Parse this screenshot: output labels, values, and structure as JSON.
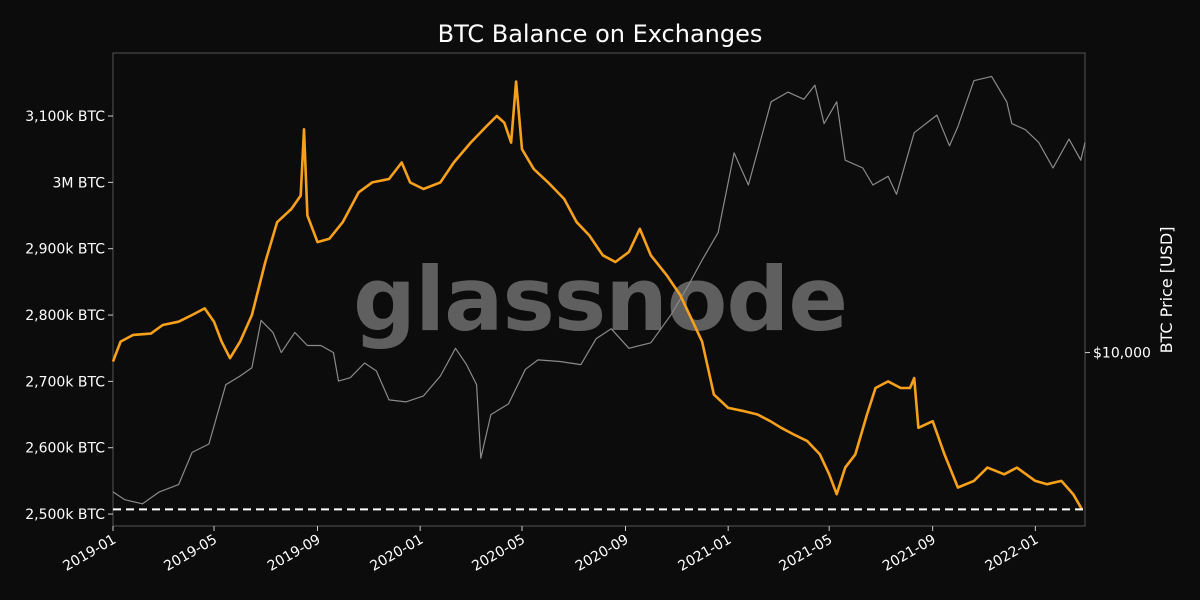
{
  "chart_data": {
    "type": "line",
    "title": "BTC Balance on Exchanges",
    "watermark": "glassnode",
    "ylabel_right": "BTC Price [USD]",
    "x_ticks": [
      "2019-01",
      "2019-05",
      "2019-09",
      "2020-01",
      "2020-05",
      "2020-09",
      "2021-01",
      "2021-05",
      "2021-09",
      "2022-01"
    ],
    "x_range": [
      "2019-01-01",
      "2022-03-01"
    ],
    "y_left_ticks": [
      {
        "value": 2500000,
        "label": "2,500k BTC"
      },
      {
        "value": 2600000,
        "label": "2,600k BTC"
      },
      {
        "value": 2700000,
        "label": "2,700k BTC"
      },
      {
        "value": 2800000,
        "label": "2,800k BTC"
      },
      {
        "value": 2900000,
        "label": "2,900k BTC"
      },
      {
        "value": 3000000,
        "label": "3M BTC"
      },
      {
        "value": 3100000,
        "label": "3,100k BTC"
      }
    ],
    "y_left_range": [
      2482000,
      3195000
    ],
    "y_right_ticks": [
      {
        "value": 10000,
        "label": "$10,000"
      }
    ],
    "y_right_scale": "log",
    "y_right_range": [
      3000,
      80000
    ],
    "reference_line": {
      "value": 2507000,
      "style": "dashed",
      "color": "#ffffff"
    },
    "grid": false,
    "series": [
      {
        "axis": "left",
        "color": "#f7a11a",
        "points": [
          [
            "2019-01-01",
            2730000
          ],
          [
            "2019-01-10",
            2760000
          ],
          [
            "2019-01-25",
            2770000
          ],
          [
            "2019-02-15",
            2772000
          ],
          [
            "2019-03-01",
            2785000
          ],
          [
            "2019-03-20",
            2790000
          ],
          [
            "2019-04-05",
            2800000
          ],
          [
            "2019-04-20",
            2810000
          ],
          [
            "2019-05-01",
            2790000
          ],
          [
            "2019-05-10",
            2760000
          ],
          [
            "2019-05-20",
            2735000
          ],
          [
            "2019-06-01",
            2760000
          ],
          [
            "2019-06-15",
            2800000
          ],
          [
            "2019-07-01",
            2880000
          ],
          [
            "2019-07-15",
            2940000
          ],
          [
            "2019-08-01",
            2960000
          ],
          [
            "2019-08-12",
            2980000
          ],
          [
            "2019-08-16",
            3080000
          ],
          [
            "2019-08-20",
            2950000
          ],
          [
            "2019-09-01",
            2910000
          ],
          [
            "2019-09-15",
            2915000
          ],
          [
            "2019-10-01",
            2940000
          ],
          [
            "2019-10-20",
            2985000
          ],
          [
            "2019-11-05",
            3000000
          ],
          [
            "2019-11-25",
            3005000
          ],
          [
            "2019-12-10",
            3030000
          ],
          [
            "2019-12-20",
            3000000
          ],
          [
            "2020-01-05",
            2990000
          ],
          [
            "2020-01-25",
            3000000
          ],
          [
            "2020-02-10",
            3030000
          ],
          [
            "2020-03-01",
            3060000
          ],
          [
            "2020-03-20",
            3085000
          ],
          [
            "2020-04-01",
            3100000
          ],
          [
            "2020-04-10",
            3090000
          ],
          [
            "2020-04-18",
            3060000
          ],
          [
            "2020-04-24",
            3152000
          ],
          [
            "2020-05-01",
            3050000
          ],
          [
            "2020-05-15",
            3020000
          ],
          [
            "2020-06-01",
            3000000
          ],
          [
            "2020-06-20",
            2975000
          ],
          [
            "2020-07-05",
            2940000
          ],
          [
            "2020-07-20",
            2920000
          ],
          [
            "2020-08-05",
            2890000
          ],
          [
            "2020-08-20",
            2880000
          ],
          [
            "2020-09-05",
            2895000
          ],
          [
            "2020-09-18",
            2930000
          ],
          [
            "2020-10-01",
            2890000
          ],
          [
            "2020-10-20",
            2860000
          ],
          [
            "2020-11-05",
            2830000
          ],
          [
            "2020-11-20",
            2790000
          ],
          [
            "2020-12-01",
            2760000
          ],
          [
            "2020-12-15",
            2680000
          ],
          [
            "2021-01-01",
            2660000
          ],
          [
            "2021-01-20",
            2655000
          ],
          [
            "2021-02-05",
            2650000
          ],
          [
            "2021-02-20",
            2640000
          ],
          [
            "2021-03-05",
            2630000
          ],
          [
            "2021-03-20",
            2620000
          ],
          [
            "2021-04-05",
            2610000
          ],
          [
            "2021-04-20",
            2590000
          ],
          [
            "2021-05-01",
            2560000
          ],
          [
            "2021-05-10",
            2530000
          ],
          [
            "2021-05-20",
            2570000
          ],
          [
            "2021-06-01",
            2590000
          ],
          [
            "2021-06-15",
            2650000
          ],
          [
            "2021-06-25",
            2690000
          ],
          [
            "2021-07-10",
            2700000
          ],
          [
            "2021-07-25",
            2690000
          ],
          [
            "2021-08-05",
            2690000
          ],
          [
            "2021-08-10",
            2705000
          ],
          [
            "2021-08-15",
            2630000
          ],
          [
            "2021-09-01",
            2640000
          ],
          [
            "2021-09-15",
            2590000
          ],
          [
            "2021-10-01",
            2540000
          ],
          [
            "2021-10-20",
            2550000
          ],
          [
            "2021-11-05",
            2570000
          ],
          [
            "2021-11-25",
            2560000
          ],
          [
            "2021-12-10",
            2570000
          ],
          [
            "2022-01-01",
            2550000
          ],
          [
            "2022-01-15",
            2545000
          ],
          [
            "2022-02-01",
            2550000
          ],
          [
            "2022-02-15",
            2530000
          ],
          [
            "2022-02-25",
            2508000
          ]
        ]
      },
      {
        "axis": "right",
        "color": "#8a8a8a",
        "points": [
          [
            "2019-01-01",
            3800
          ],
          [
            "2019-01-15",
            3600
          ],
          [
            "2019-02-05",
            3500
          ],
          [
            "2019-02-25",
            3800
          ],
          [
            "2019-03-20",
            4000
          ],
          [
            "2019-04-05",
            5000
          ],
          [
            "2019-04-25",
            5300
          ],
          [
            "2019-05-15",
            8000
          ],
          [
            "2019-06-01",
            8500
          ],
          [
            "2019-06-15",
            9000
          ],
          [
            "2019-06-26",
            12500
          ],
          [
            "2019-07-10",
            11500
          ],
          [
            "2019-07-20",
            10000
          ],
          [
            "2019-08-05",
            11500
          ],
          [
            "2019-08-20",
            10500
          ],
          [
            "2019-09-05",
            10500
          ],
          [
            "2019-09-20",
            10000
          ],
          [
            "2019-09-26",
            8200
          ],
          [
            "2019-10-10",
            8400
          ],
          [
            "2019-10-27",
            9300
          ],
          [
            "2019-11-10",
            8800
          ],
          [
            "2019-11-25",
            7200
          ],
          [
            "2019-12-15",
            7100
          ],
          [
            "2020-01-05",
            7400
          ],
          [
            "2020-01-25",
            8500
          ],
          [
            "2020-02-12",
            10300
          ],
          [
            "2020-02-25",
            9200
          ],
          [
            "2020-03-08",
            8000
          ],
          [
            "2020-03-13",
            4800
          ],
          [
            "2020-03-25",
            6500
          ],
          [
            "2020-04-15",
            7000
          ],
          [
            "2020-05-05",
            8900
          ],
          [
            "2020-05-20",
            9500
          ],
          [
            "2020-06-15",
            9400
          ],
          [
            "2020-07-10",
            9200
          ],
          [
            "2020-07-28",
            11000
          ],
          [
            "2020-08-15",
            11800
          ],
          [
            "2020-09-05",
            10300
          ],
          [
            "2020-10-01",
            10700
          ],
          [
            "2020-10-25",
            13000
          ],
          [
            "2020-11-15",
            16000
          ],
          [
            "2020-12-01",
            19000
          ],
          [
            "2020-12-20",
            23000
          ],
          [
            "2021-01-08",
            40000
          ],
          [
            "2021-01-25",
            32000
          ],
          [
            "2021-02-10",
            45000
          ],
          [
            "2021-02-21",
            57000
          ],
          [
            "2021-03-13",
            61000
          ],
          [
            "2021-04-01",
            58000
          ],
          [
            "2021-04-14",
            64000
          ],
          [
            "2021-04-25",
            49000
          ],
          [
            "2021-05-10",
            57000
          ],
          [
            "2021-05-20",
            38000
          ],
          [
            "2021-06-10",
            36000
          ],
          [
            "2021-06-22",
            32000
          ],
          [
            "2021-07-10",
            34000
          ],
          [
            "2021-07-20",
            30000
          ],
          [
            "2021-08-10",
            46000
          ],
          [
            "2021-09-06",
            52000
          ],
          [
            "2021-09-21",
            42000
          ],
          [
            "2021-10-01",
            48000
          ],
          [
            "2021-10-20",
            66000
          ],
          [
            "2021-11-10",
            68000
          ],
          [
            "2021-11-28",
            57000
          ],
          [
            "2021-12-04",
            49000
          ],
          [
            "2021-12-20",
            47000
          ],
          [
            "2022-01-05",
            43000
          ],
          [
            "2022-01-22",
            36000
          ],
          [
            "2022-02-10",
            44000
          ],
          [
            "2022-02-24",
            38000
          ],
          [
            "2022-03-01",
            43000
          ]
        ]
      }
    ]
  }
}
